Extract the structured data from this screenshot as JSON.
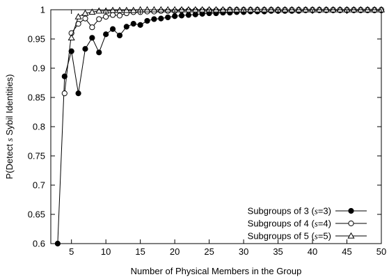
{
  "chart_data": {
    "type": "line",
    "title": "",
    "xlabel": "Number of Physical Members in the Group",
    "ylabel": "P(Detect s Sybil Identities)",
    "xlim": [
      2,
      50
    ],
    "ylim": [
      0.6,
      1.0
    ],
    "xticks": [
      5,
      10,
      15,
      20,
      25,
      30,
      35,
      40,
      45,
      50
    ],
    "yticks": [
      0.6,
      0.65,
      0.7,
      0.75,
      0.8,
      0.85,
      0.9,
      0.95,
      1
    ],
    "ytick_labels": [
      "0.6",
      "0.65",
      "0.7",
      "0.75",
      "0.8",
      "0.85",
      "0.9",
      "0.95",
      "1"
    ],
    "grid": false,
    "legend_position": "bottom-right",
    "series": [
      {
        "name": "Subgroups of 3 (s=3)",
        "label_parts": [
          "Subgroups of 3 (",
          "s",
          "=3)"
        ],
        "marker": "filled-circle",
        "x": [
          3,
          4,
          5,
          6,
          7,
          8,
          9,
          10,
          11,
          12,
          13,
          14,
          15,
          16,
          17,
          18,
          19,
          20,
          21,
          22,
          23,
          24,
          25,
          26,
          27,
          28,
          29,
          30,
          31,
          32,
          33,
          34,
          35,
          36,
          37,
          38,
          39,
          40,
          41,
          42,
          43,
          44,
          45,
          46,
          47,
          48,
          49,
          50
        ],
        "values": [
          0.6,
          0.886,
          0.929,
          0.857,
          0.933,
          0.952,
          0.927,
          0.958,
          0.967,
          0.956,
          0.971,
          0.976,
          0.974,
          0.981,
          0.984,
          0.985,
          0.987,
          0.989,
          0.99,
          0.991,
          0.992,
          0.993,
          0.994,
          0.994,
          0.995,
          0.995,
          0.996,
          0.996,
          0.997,
          0.997,
          0.997,
          0.998,
          0.998,
          0.998,
          0.998,
          0.998,
          0.999,
          0.999,
          0.999,
          0.999,
          0.999,
          0.999,
          0.999,
          0.999,
          0.999,
          0.999,
          0.999,
          0.999
        ]
      },
      {
        "name": "Subgroups of 4 (s=4)",
        "label_parts": [
          "Subgroups of 4 (",
          "s",
          "=4)"
        ],
        "marker": "open-circle",
        "x": [
          4,
          5,
          6,
          7,
          8,
          9,
          10,
          11,
          12,
          13,
          14,
          15,
          16,
          17,
          18,
          19,
          20,
          21,
          22,
          23,
          24,
          25,
          26,
          27,
          28,
          29,
          30,
          31,
          32,
          33,
          34,
          35,
          36,
          37,
          38,
          39,
          40,
          41,
          42,
          43,
          44,
          45,
          46,
          47,
          48,
          49,
          50
        ],
        "values": [
          0.857,
          0.96,
          0.976,
          0.985,
          0.97,
          0.984,
          0.988,
          0.991,
          0.99,
          0.994,
          0.996,
          0.996,
          0.997,
          0.997,
          0.998,
          0.998,
          0.998,
          0.999,
          0.999,
          0.999,
          0.999,
          0.999,
          0.999,
          0.999,
          1.0,
          1.0,
          1.0,
          1.0,
          1.0,
          1.0,
          1.0,
          1.0,
          1.0,
          1.0,
          1.0,
          1.0,
          1.0,
          1.0,
          1.0,
          1.0,
          1.0,
          1.0,
          1.0,
          1.0,
          1.0,
          1.0,
          1.0
        ]
      },
      {
        "name": "Subgroups of 5 (s=5)",
        "label_parts": [
          "Subgroups of 5 (",
          "s",
          "=5)"
        ],
        "marker": "open-triangle",
        "x": [
          5,
          6,
          7,
          8,
          9,
          10,
          11,
          12,
          13,
          14,
          15,
          16,
          17,
          18,
          19,
          20,
          21,
          22,
          23,
          24,
          25,
          26,
          27,
          28,
          29,
          30,
          31,
          32,
          33,
          34,
          35,
          36,
          37,
          38,
          39,
          40,
          41,
          42,
          43,
          44,
          45,
          46,
          47,
          48,
          49,
          50
        ],
        "values": [
          0.952,
          0.988,
          0.994,
          0.996,
          0.998,
          0.998,
          0.999,
          0.999,
          0.999,
          0.999,
          1.0,
          1.0,
          1.0,
          1.0,
          1.0,
          1.0,
          1.0,
          1.0,
          1.0,
          1.0,
          1.0,
          1.0,
          1.0,
          1.0,
          1.0,
          1.0,
          1.0,
          1.0,
          1.0,
          1.0,
          1.0,
          1.0,
          1.0,
          1.0,
          1.0,
          1.0,
          1.0,
          1.0,
          1.0,
          1.0,
          1.0,
          1.0,
          1.0,
          1.0,
          1.0,
          1.0
        ]
      }
    ]
  }
}
